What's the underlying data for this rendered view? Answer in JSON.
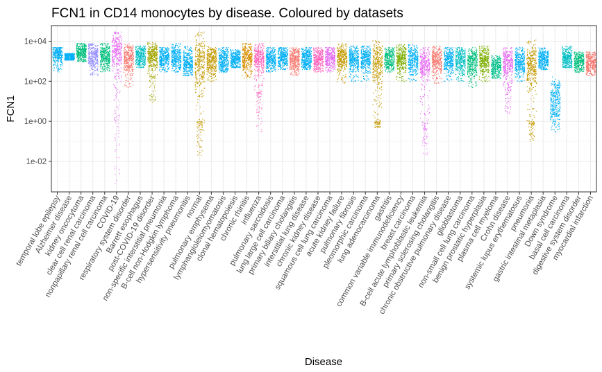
{
  "chart_data": {
    "type": "scatter",
    "title": "FCN1 in CD14 monocytes by disease. Coloured by datasets",
    "xlabel": "Disease",
    "ylabel": "FCN1",
    "y_scale": "log10",
    "ylim": [
      0.0003,
      60000
    ],
    "y_ticks": [
      {
        "value": 0.01,
        "label": "1e-02"
      },
      {
        "value": 1,
        "label": "1e+00"
      },
      {
        "value": 100,
        "label": "1e+02"
      },
      {
        "value": 10000,
        "label": "1e+04"
      }
    ],
    "grid": true,
    "categories": [
      "temporal lobe epilepsy",
      "Alzheimer disease",
      "kidney oncocytoma",
      "clear cell renal carcinoma",
      "nonpapillary renal cell carcinoma",
      "COVID-19",
      "respiratory system disorder",
      "Barrett esophagus",
      "post-COVID-19 disorder",
      "non-specific interstitial pneumonia",
      "B-cell non-Hodgkin lymphoma",
      "hypersensitivity pneumonitis",
      "normal",
      "pulmonary emphysema",
      "lymphangioleiomyomatosis",
      "clonal hematopoiesis",
      "chronic rhinitis",
      "influenza",
      "pulmonary sarcoidosis",
      "lung large cell carcinoma",
      "primary biliary cholangitis",
      "interstitial lung disease",
      "chronic kidney disease",
      "squamous cell lung carcinoma",
      "acute kidney failure",
      "pulmonary fibrosis",
      "pleomorphic carcinoma",
      "lung adenocarcinoma",
      "gastritis",
      "common variable immunodeficiency",
      "breast carcinoma",
      "B-cell acute lymphoblastic leukemia",
      "primary sclerosing cholangitis",
      "chronic obstructive pulmonary disease",
      "glioblastoma",
      "non-small cell lung carcinoma",
      "benign prostatic hyperplasia",
      "plasma cell myeloma",
      "Crohn disease",
      "systemic lupus erythematosus",
      "pneumonia",
      "gastric intestinal metaplasia",
      "Down syndrome",
      "basal cell carcinoma",
      "digestive system disorder",
      "myocardial infarction"
    ],
    "series": [
      {
        "category": "temporal lobe epilepsy",
        "color": "#00B0F6",
        "range": [
          300,
          5000
        ],
        "median": 2500,
        "tail": null
      },
      {
        "category": "Alzheimer disease",
        "color": "#00B0F6",
        "range": [
          1200,
          2500
        ],
        "median": 1800,
        "tail": null
      },
      {
        "category": "kidney oncocytoma",
        "color": "#00BF7D",
        "range": [
          1000,
          8000
        ],
        "median": 3000,
        "tail": null
      },
      {
        "category": "clear cell renal carcinoma",
        "color": "#9590FF",
        "range": [
          200,
          8000
        ],
        "median": 2000,
        "tail": null
      },
      {
        "category": "nonpapillary renal cell carcinoma",
        "color": "#00BF7D",
        "range": [
          300,
          8000
        ],
        "median": 2000,
        "tail": null
      },
      {
        "category": "COVID-19",
        "color": "#E76BF3",
        "range": [
          30,
          30000
        ],
        "median": 3000,
        "tail": [
          0.0007,
          30
        ]
      },
      {
        "category": "respiratory system disorder",
        "color": "#F8766D",
        "range": [
          50,
          8000
        ],
        "median": 1500,
        "tail": null
      },
      {
        "category": "Barrett esophagus",
        "color": "#00BFC4",
        "range": [
          500,
          6000
        ],
        "median": 2000,
        "tail": null
      },
      {
        "category": "post-COVID-19 disorder",
        "color": "#A3A500",
        "range": [
          200,
          9000
        ],
        "median": 2000,
        "tail": [
          8,
          200
        ]
      },
      {
        "category": "non-specific interstitial pneumonia",
        "color": "#00B0F6",
        "range": [
          300,
          5000
        ],
        "median": 1500,
        "tail": null
      },
      {
        "category": "B-cell non-Hodgkin lymphoma",
        "color": "#00B0F6",
        "range": [
          300,
          8000
        ],
        "median": 1500,
        "tail": null
      },
      {
        "category": "hypersensitivity pneumonitis",
        "color": "#00B0F6",
        "range": [
          200,
          6000
        ],
        "median": 1000,
        "tail": null
      },
      {
        "category": "normal",
        "color": "#C49A00",
        "range": [
          0.03,
          30000
        ],
        "median": 700,
        "tail": [
          0.02,
          1
        ]
      },
      {
        "category": "pulmonary emphysema",
        "color": "#C49A00",
        "range": [
          100,
          6000
        ],
        "median": 1200,
        "tail": null
      },
      {
        "category": "lymphangioleiomyomatosis",
        "color": "#00B0F6",
        "range": [
          300,
          5000
        ],
        "median": 1200,
        "tail": null
      },
      {
        "category": "clonal hematopoiesis",
        "color": "#00B0F6",
        "range": [
          500,
          4000
        ],
        "median": 1300,
        "tail": null
      },
      {
        "category": "chronic rhinitis",
        "color": "#D89000",
        "range": [
          150,
          8000
        ],
        "median": 1500,
        "tail": null
      },
      {
        "category": "influenza",
        "color": "#FF62BC",
        "range": [
          30,
          8000
        ],
        "median": 1500,
        "tail": [
          0.3,
          30
        ]
      },
      {
        "category": "pulmonary sarcoidosis",
        "color": "#00B0F6",
        "range": [
          300,
          5000
        ],
        "median": 1500,
        "tail": null
      },
      {
        "category": "lung large cell carcinoma",
        "color": "#00B0F6",
        "range": [
          400,
          5000
        ],
        "median": 1500,
        "tail": null
      },
      {
        "category": "primary biliary cholangitis",
        "color": "#F8766D",
        "range": [
          200,
          5000
        ],
        "median": 1300,
        "tail": null
      },
      {
        "category": "interstitial lung disease",
        "color": "#00B0F6",
        "range": [
          400,
          5000
        ],
        "median": 1500,
        "tail": null
      },
      {
        "category": "chronic kidney disease",
        "color": "#FF62BC",
        "range": [
          300,
          5000
        ],
        "median": 1300,
        "tail": null
      },
      {
        "category": "squamous cell lung carcinoma",
        "color": "#E76BF3",
        "range": [
          300,
          5000
        ],
        "median": 1500,
        "tail": null
      },
      {
        "category": "acute kidney failure",
        "color": "#C49A00",
        "range": [
          80,
          8000
        ],
        "median": 1500,
        "tail": null
      },
      {
        "category": "pulmonary fibrosis",
        "color": "#00B0F6",
        "range": [
          100,
          6000
        ],
        "median": 1500,
        "tail": null
      },
      {
        "category": "pleomorphic carcinoma",
        "color": "#00B0F6",
        "range": [
          100,
          6000
        ],
        "median": 1500,
        "tail": null
      },
      {
        "category": "lung adenocarcinoma",
        "color": "#C49A00",
        "range": [
          1,
          12000
        ],
        "median": 800,
        "tail": [
          0.5,
          1
        ]
      },
      {
        "category": "gastritis",
        "color": "#00BF7D",
        "range": [
          300,
          5000
        ],
        "median": 1500,
        "tail": null
      },
      {
        "category": "common variable immunodeficiency",
        "color": "#7CAE00",
        "range": [
          100,
          7000
        ],
        "median": 1500,
        "tail": null
      },
      {
        "category": "breast carcinoma",
        "color": "#00B0F6",
        "range": [
          100,
          7000
        ],
        "median": 1200,
        "tail": null
      },
      {
        "category": "B-cell acute lymphoblastic leukemia",
        "color": "#E76BF3",
        "range": [
          1,
          5000
        ],
        "median": 700,
        "tail": [
          0.02,
          1
        ]
      },
      {
        "category": "primary sclerosing cholangitis",
        "color": "#F8766D",
        "range": [
          80,
          6000
        ],
        "median": 1200,
        "tail": null
      },
      {
        "category": "chronic obstructive pulmonary disease",
        "color": "#00B0F6",
        "range": [
          100,
          5000
        ],
        "median": 1200,
        "tail": null
      },
      {
        "category": "glioblastoma",
        "color": "#00BFC4",
        "range": [
          100,
          5000
        ],
        "median": 1200,
        "tail": null
      },
      {
        "category": "non-small cell lung carcinoma",
        "color": "#00BF7D",
        "range": [
          50,
          5000
        ],
        "median": 1000,
        "tail": null
      },
      {
        "category": "benign prostatic hyperplasia",
        "color": "#7CAE00",
        "range": [
          100,
          6000
        ],
        "median": 1200,
        "tail": null
      },
      {
        "category": "plasma cell myeloma",
        "color": "#00C08B",
        "range": [
          150,
          2000
        ],
        "median": 500,
        "tail": null
      },
      {
        "category": "Crohn disease",
        "color": "#E76BF3",
        "range": [
          50,
          5000
        ],
        "median": 800,
        "tail": [
          2,
          50
        ]
      },
      {
        "category": "systemic lupus erythematosus",
        "color": "#00B0F6",
        "range": [
          100,
          5000
        ],
        "median": 1000,
        "tail": null
      },
      {
        "category": "pneumonia",
        "color": "#C49A00",
        "range": [
          1,
          12000
        ],
        "median": 700,
        "tail": [
          0.1,
          1
        ]
      },
      {
        "category": "gastric intestinal metaplasia",
        "color": "#00B0F6",
        "range": [
          400,
          5000
        ],
        "median": 1200,
        "tail": null
      },
      {
        "category": "Down syndrome",
        "color": "#00B0F6",
        "range": [
          0.3,
          200
        ],
        "median": 10,
        "tail": null
      },
      {
        "category": "basal cell carcinoma",
        "color": "#00BFC4",
        "range": [
          500,
          6000
        ],
        "median": 1500,
        "tail": null
      },
      {
        "category": "digestive system disorder",
        "color": "#00BF7D",
        "range": [
          300,
          3000
        ],
        "median": 1000,
        "tail": null
      },
      {
        "category": "myocardial infarction",
        "color": "#F8766D",
        "range": [
          200,
          3000
        ],
        "median": 800,
        "tail": null
      }
    ]
  }
}
